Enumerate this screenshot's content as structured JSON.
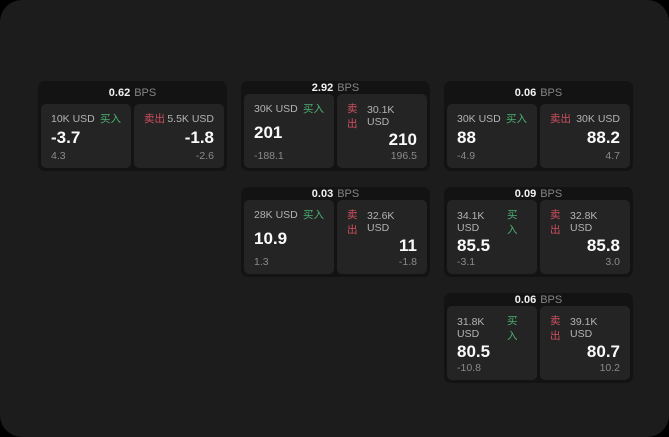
{
  "colors": {
    "buy_green": "#4daf72",
    "sell_red": "#cf5060",
    "window_bg": "#1c1c1c",
    "card_bg": "#131313",
    "panel_bg": "#242424"
  },
  "labels": {
    "bps_unit": "BPS",
    "buy": "买入",
    "sell": "卖出"
  },
  "cards": [
    {
      "bps": "0.62",
      "buy": {
        "amount": "10K USD",
        "price": "-3.7",
        "delta": "4.3"
      },
      "sell": {
        "amount": "5.5K USD",
        "price": "-1.8",
        "delta": "-2.6"
      }
    },
    {
      "bps": "2.92",
      "buy": {
        "amount": "30K USD",
        "price": "201",
        "delta": "-188.1"
      },
      "sell": {
        "amount": "30.1K USD",
        "price": "210",
        "delta": "196.5"
      }
    },
    {
      "bps": "0.06",
      "buy": {
        "amount": "30K USD",
        "price": "88",
        "delta": "-4.9"
      },
      "sell": {
        "amount": "30K USD",
        "price": "88.2",
        "delta": "4.7"
      }
    },
    {
      "bps": "0.03",
      "buy": {
        "amount": "28K USD",
        "price": "10.9",
        "delta": "1.3"
      },
      "sell": {
        "amount": "32.6K USD",
        "price": "11",
        "delta": "-1.8"
      }
    },
    {
      "bps": "0.09",
      "buy": {
        "amount": "34.1K USD",
        "price": "85.5",
        "delta": "-3.1"
      },
      "sell": {
        "amount": "32.8K USD",
        "price": "85.8",
        "delta": "3.0"
      }
    },
    {
      "bps": "0.06",
      "buy": {
        "amount": "31.8K USD",
        "price": "80.5",
        "delta": "-10.8"
      },
      "sell": {
        "amount": "39.1K USD",
        "price": "80.7",
        "delta": "10.2"
      }
    }
  ]
}
